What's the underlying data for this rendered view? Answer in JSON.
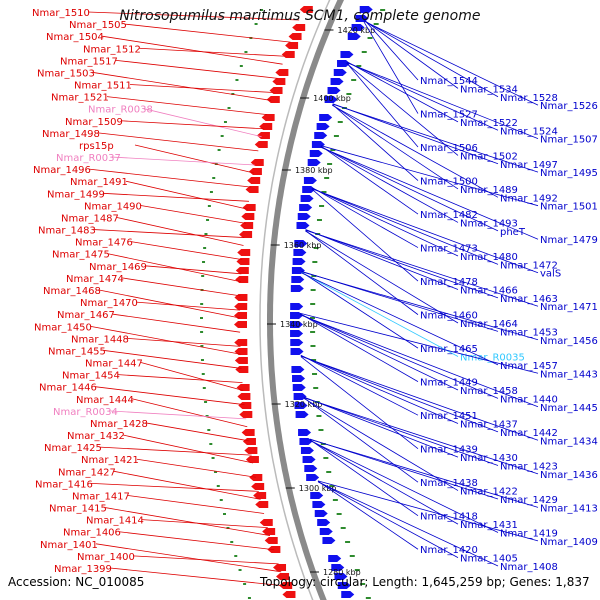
{
  "title": "Nitrosopumilus maritimus SCM1, complete genome",
  "accession": "Accession: NC_010085",
  "topology": "Topology: circular; Length: 1,645,259 bp; Genes: 1,837",
  "colors": {
    "left_label": "#dd0000",
    "left_rna_label": "#f080c0",
    "right_label": "#0000cc",
    "right_rna_label": "#30c8ff",
    "backbone": "#8a8a8a",
    "forward_gene": "#ee1111",
    "reverse_gene": "#1111ee",
    "gc_tick": "#2e8b2e"
  },
  "scale_ticks": [
    "1420 kbp",
    "1400 kbp",
    "1380 kbp",
    "1360 kbp",
    "1340 kbp",
    "1320 kbp",
    "1300 kbp",
    "1280 kbp"
  ],
  "left_labels": [
    {
      "t": "Nmar_1510",
      "k": "gene"
    },
    {
      "t": "Nmar_1505",
      "k": "gene"
    },
    {
      "t": "Nmar_1504",
      "k": "gene"
    },
    {
      "t": "Nmar_1512",
      "k": "gene"
    },
    {
      "t": "Nmar_1517",
      "k": "gene"
    },
    {
      "t": "Nmar_1503",
      "k": "gene"
    },
    {
      "t": "Nmar_1511",
      "k": "gene"
    },
    {
      "t": "Nmar_1521",
      "k": "gene"
    },
    {
      "t": "Nmar_R0038",
      "k": "rna"
    },
    {
      "t": "Nmar_1509",
      "k": "gene"
    },
    {
      "t": "Nmar_1498",
      "k": "gene"
    },
    {
      "t": "rps15p",
      "k": "gene"
    },
    {
      "t": "Nmar_R0037",
      "k": "rna"
    },
    {
      "t": "Nmar_1496",
      "k": "gene"
    },
    {
      "t": "Nmar_1491",
      "k": "gene"
    },
    {
      "t": "Nmar_1499",
      "k": "gene"
    },
    {
      "t": "Nmar_1490",
      "k": "gene"
    },
    {
      "t": "Nmar_1487",
      "k": "gene"
    },
    {
      "t": "Nmar_1483",
      "k": "gene"
    },
    {
      "t": "Nmar_1476",
      "k": "gene"
    },
    {
      "t": "Nmar_1475",
      "k": "gene"
    },
    {
      "t": "Nmar_1469",
      "k": "gene"
    },
    {
      "t": "Nmar_1474",
      "k": "gene"
    },
    {
      "t": "Nmar_1468",
      "k": "gene"
    },
    {
      "t": "Nmar_1470",
      "k": "gene"
    },
    {
      "t": "Nmar_1467",
      "k": "gene"
    },
    {
      "t": "Nmar_1450",
      "k": "gene"
    },
    {
      "t": "Nmar_1448",
      "k": "gene"
    },
    {
      "t": "Nmar_1455",
      "k": "gene"
    },
    {
      "t": "Nmar_1447",
      "k": "gene"
    },
    {
      "t": "Nmar_1454",
      "k": "gene"
    },
    {
      "t": "Nmar_1446",
      "k": "gene"
    },
    {
      "t": "Nmar_1444",
      "k": "gene"
    },
    {
      "t": "Nmar_R0034",
      "k": "rna"
    },
    {
      "t": "Nmar_1428",
      "k": "gene"
    },
    {
      "t": "Nmar_1432",
      "k": "gene"
    },
    {
      "t": "Nmar_1425",
      "k": "gene"
    },
    {
      "t": "Nmar_1421",
      "k": "gene"
    },
    {
      "t": "Nmar_1427",
      "k": "gene"
    },
    {
      "t": "Nmar_1416",
      "k": "gene"
    },
    {
      "t": "Nmar_1417",
      "k": "gene"
    },
    {
      "t": "Nmar_1415",
      "k": "gene"
    },
    {
      "t": "Nmar_1414",
      "k": "gene"
    },
    {
      "t": "Nmar_1406",
      "k": "gene"
    },
    {
      "t": "Nmar_1401",
      "k": "gene"
    },
    {
      "t": "Nmar_1400",
      "k": "gene"
    },
    {
      "t": "Nmar_1399",
      "k": "gene"
    }
  ],
  "right_labels": [
    {
      "t": "Nmar_1544",
      "k": "gene"
    },
    {
      "t": "Nmar_1534",
      "k": "gene"
    },
    {
      "t": "Nmar_1528",
      "k": "gene"
    },
    {
      "t": "Nmar_1526",
      "k": "gene"
    },
    {
      "t": "Nmar_1527",
      "k": "gene"
    },
    {
      "t": "Nmar_1522",
      "k": "gene"
    },
    {
      "t": "Nmar_1524",
      "k": "gene"
    },
    {
      "t": "Nmar_1507",
      "k": "gene"
    },
    {
      "t": "Nmar_1506",
      "k": "gene"
    },
    {
      "t": "Nmar_1502",
      "k": "gene"
    },
    {
      "t": "Nmar_1497",
      "k": "gene"
    },
    {
      "t": "Nmar_1495",
      "k": "gene"
    },
    {
      "t": "Nmar_1500",
      "k": "gene"
    },
    {
      "t": "Nmar_1489",
      "k": "gene"
    },
    {
      "t": "Nmar_1492",
      "k": "gene"
    },
    {
      "t": "Nmar_1501",
      "k": "gene"
    },
    {
      "t": "Nmar_1482",
      "k": "gene"
    },
    {
      "t": "Nmar_1493",
      "k": "gene"
    },
    {
      "t": "pheT",
      "k": "gene"
    },
    {
      "t": "Nmar_1479",
      "k": "gene"
    },
    {
      "t": "Nmar_1473",
      "k": "gene"
    },
    {
      "t": "Nmar_1480",
      "k": "gene"
    },
    {
      "t": "Nmar_1472",
      "k": "gene"
    },
    {
      "t": "valS",
      "k": "gene"
    },
    {
      "t": "Nmar_1478",
      "k": "gene"
    },
    {
      "t": "Nmar_1466",
      "k": "gene"
    },
    {
      "t": "Nmar_1463",
      "k": "gene"
    },
    {
      "t": "Nmar_1471",
      "k": "gene"
    },
    {
      "t": "Nmar_1460",
      "k": "gene"
    },
    {
      "t": "Nmar_1464",
      "k": "gene"
    },
    {
      "t": "Nmar_1453",
      "k": "gene"
    },
    {
      "t": "Nmar_1456",
      "k": "gene"
    },
    {
      "t": "Nmar_1465",
      "k": "gene"
    },
    {
      "t": "Nmar_R0035",
      "k": "rna"
    },
    {
      "t": "Nmar_1457",
      "k": "gene"
    },
    {
      "t": "Nmar_1443",
      "k": "gene"
    },
    {
      "t": "Nmar_1449",
      "k": "gene"
    },
    {
      "t": "Nmar_1458",
      "k": "gene"
    },
    {
      "t": "Nmar_1440",
      "k": "gene"
    },
    {
      "t": "Nmar_1445",
      "k": "gene"
    },
    {
      "t": "Nmar_1451",
      "k": "gene"
    },
    {
      "t": "Nmar_1437",
      "k": "gene"
    },
    {
      "t": "Nmar_1442",
      "k": "gene"
    },
    {
      "t": "Nmar_1434",
      "k": "gene"
    },
    {
      "t": "Nmar_1439",
      "k": "gene"
    },
    {
      "t": "Nmar_1430",
      "k": "gene"
    },
    {
      "t": "Nmar_1423",
      "k": "gene"
    },
    {
      "t": "Nmar_1436",
      "k": "gene"
    },
    {
      "t": "Nmar_1438",
      "k": "gene"
    },
    {
      "t": "Nmar_1422",
      "k": "gene"
    },
    {
      "t": "Nmar_1429",
      "k": "gene"
    },
    {
      "t": "Nmar_1413",
      "k": "gene"
    },
    {
      "t": "Nmar_1418",
      "k": "gene"
    },
    {
      "t": "Nmar_1431",
      "k": "gene"
    },
    {
      "t": "Nmar_1419",
      "k": "gene"
    },
    {
      "t": "Nmar_1409",
      "k": "gene"
    },
    {
      "t": "Nmar_1420",
      "k": "gene"
    },
    {
      "t": "Nmar_1405",
      "k": "gene"
    },
    {
      "t": "Nmar_1408",
      "k": "gene"
    }
  ]
}
